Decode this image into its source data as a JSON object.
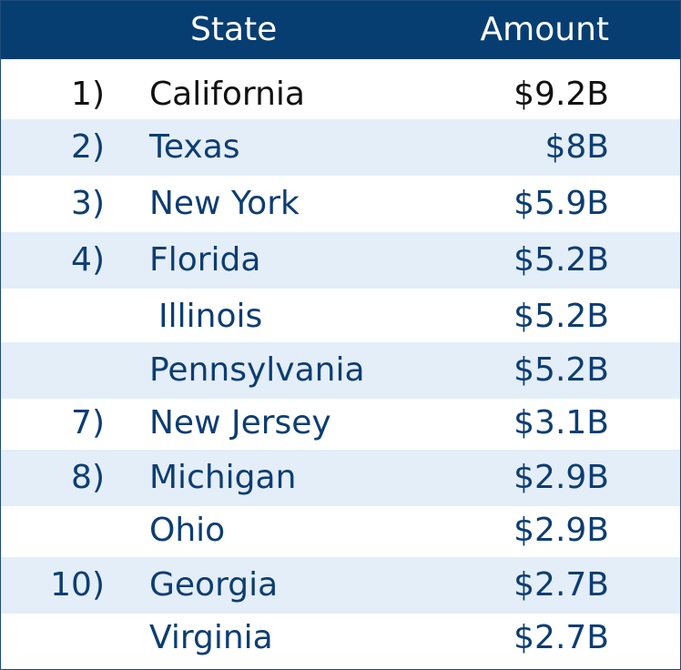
{
  "chart_data": {
    "type": "table",
    "columns": [
      "",
      "State",
      "Amount"
    ],
    "rows": [
      {
        "rank": "1)",
        "state": "California",
        "amount": "$9.2B"
      },
      {
        "rank": "2)",
        "state": "Texas",
        "amount": "$8B"
      },
      {
        "rank": "3)",
        "state": "New York",
        "amount": "$5.9B"
      },
      {
        "rank": "4)",
        "state": "Florida",
        "amount": "$5.2B"
      },
      {
        "rank": "",
        "state": "Illinois",
        "amount": "$5.2B"
      },
      {
        "rank": "",
        "state": "Pennsylvania",
        "amount": "$5.2B"
      },
      {
        "rank": "7)",
        "state": "New Jersey",
        "amount": "$3.1B"
      },
      {
        "rank": "8)",
        "state": "Michigan",
        "amount": "$2.9B"
      },
      {
        "rank": "",
        "state": "Ohio",
        "amount": "$2.9B"
      },
      {
        "rank": "10)",
        "state": "Georgia",
        "amount": "$2.7B"
      },
      {
        "rank": "",
        "state": "Virginia",
        "amount": "$2.7B"
      }
    ],
    "colors": {
      "header_background": "#073e71",
      "header_text": "#ffffff",
      "row_alt_background": "#e4eef8",
      "first_row_text": "#111111",
      "row_text": "#0d3d73"
    }
  }
}
